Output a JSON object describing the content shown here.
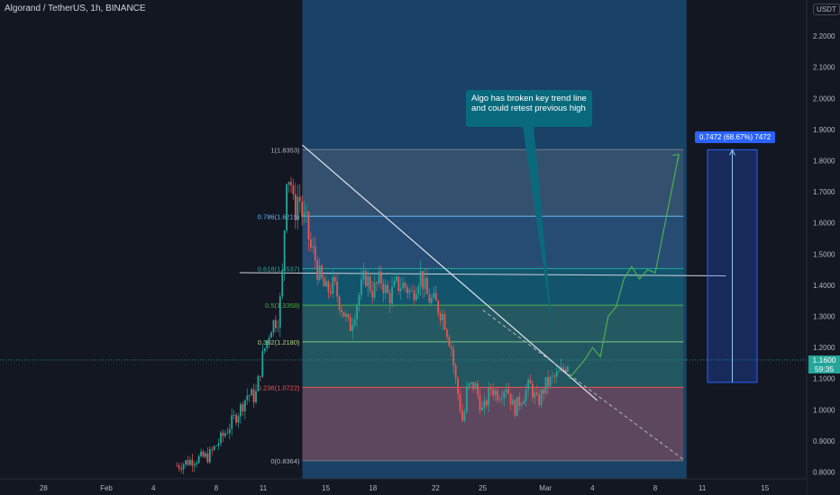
{
  "header": {
    "title": "Algorand / TetherUS, 1h, BINANCE",
    "currency": "USDT"
  },
  "current_price": {
    "value": "1.1600",
    "countdown": "59:35",
    "price": 1.16
  },
  "annotation": {
    "text": "Algo has broken key trend line and could retest previous high"
  },
  "range_measure": {
    "label": "0.7472 (68.67%) 7472",
    "from": 1.0878,
    "to": 1.835
  },
  "colors": {
    "background": "#131722",
    "up": "#26a69a",
    "down": "#ef5350",
    "highlight": "#1b4a72",
    "projection": "#4caf50",
    "callout": "#0a6a7d",
    "range_box": "#2962ff"
  },
  "chart_data": {
    "type": "candlestick",
    "symbol": "Algorand / TetherUS",
    "interval": "1h",
    "exchange": "BINANCE",
    "y_axis": {
      "range": [
        0.79,
        2.28
      ],
      "ticks": [
        "2.2000",
        "2.1000",
        "2.0000",
        "1.9000",
        "1.8000",
        "1.7000",
        "1.6000",
        "1.5000",
        "1.4000",
        "1.3000",
        "1.2000",
        "1.1000",
        "1.0000",
        "0.9000",
        "0.8000"
      ],
      "tick_values": [
        2.2,
        2.1,
        2.0,
        1.9,
        1.8,
        1.7,
        1.6,
        1.5,
        1.4,
        1.3,
        1.2,
        1.1,
        1.0,
        0.9,
        0.8
      ]
    },
    "x_axis": {
      "ticks": [
        "28",
        "Feb",
        "4",
        "8",
        "11",
        "15",
        "18",
        "22",
        "25",
        "Mar",
        "4",
        "8",
        "11",
        "15"
      ],
      "tick_days": [
        -4,
        0,
        3,
        7,
        10,
        14,
        17,
        21,
        24,
        28,
        31,
        35,
        38,
        42
      ],
      "note": "days counted from Feb 1"
    },
    "series": [
      {
        "name": "price",
        "day": [
          4.5,
          5.5,
          6.5,
          7.5,
          8.5,
          9.0,
          9.5,
          10.0,
          10.5,
          11.0,
          11.25,
          11.5,
          11.75,
          12.0,
          12.25,
          12.5,
          12.75,
          13.0,
          13.25,
          13.5,
          14.0,
          14.5,
          15.0,
          15.5,
          16.0,
          16.5,
          17.0,
          17.5,
          18.0,
          18.5,
          19.0,
          19.5,
          20.0,
          20.5,
          21.0,
          21.5,
          22.0,
          22.25,
          22.5,
          22.75,
          23.0,
          23.5,
          24.0,
          24.5,
          25.0,
          25.5,
          26.0,
          26.5,
          27.0,
          27.5,
          28.0,
          28.5,
          29.0,
          29.5
        ],
        "price": [
          0.82,
          0.84,
          0.85,
          0.92,
          1.0,
          1.05,
          1.04,
          1.18,
          1.27,
          1.3,
          1.45,
          1.76,
          1.74,
          1.62,
          1.7,
          1.62,
          1.6,
          1.52,
          1.5,
          1.44,
          1.38,
          1.4,
          1.33,
          1.26,
          1.35,
          1.43,
          1.38,
          1.42,
          1.36,
          1.4,
          1.4,
          1.37,
          1.44,
          1.36,
          1.34,
          1.3,
          1.2,
          1.1,
          1.03,
          0.95,
          1.07,
          1.08,
          0.99,
          1.07,
          1.05,
          1.08,
          1.0,
          1.04,
          1.08,
          1.02,
          1.08,
          1.1,
          1.12,
          1.16
        ]
      },
      {
        "name": "projection",
        "day": [
          29.5,
          30.5,
          31.0,
          31.5,
          32.0,
          32.5,
          33.0,
          33.5,
          34.0,
          34.5,
          35.0,
          36.5
        ],
        "price": [
          1.1,
          1.16,
          1.2,
          1.17,
          1.3,
          1.33,
          1.42,
          1.46,
          1.42,
          1.45,
          1.44,
          1.82
        ]
      }
    ],
    "fibonacci": {
      "levels": [
        {
          "ratio": 1.0,
          "price": 1.8353,
          "label": "1(1.8353)"
        },
        {
          "ratio": 0.786,
          "price": 1.6215,
          "label": "0.786(1.6215)"
        },
        {
          "ratio": 0.618,
          "price": 1.4537,
          "label": "0.618(1.4537)"
        },
        {
          "ratio": 0.5,
          "price": 1.3358,
          "label": "0.5(1.3358)"
        },
        {
          "ratio": 0.382,
          "price": 1.218,
          "label": "0.382(1.2180)"
        },
        {
          "ratio": 0.236,
          "price": 1.0722,
          "label": "0.236(1.0722)"
        },
        {
          "ratio": 0.0,
          "price": 0.8364,
          "label": "0(0.8364)"
        }
      ],
      "start_day": 12.5,
      "end_day": 36.8
    },
    "trend_lines": [
      {
        "name": "descending trend line",
        "from": [
          12.5,
          1.85
        ],
        "to": [
          31.3,
          1.03
        ]
      },
      {
        "name": "extension",
        "from": [
          24.0,
          1.32
        ],
        "to": [
          36.8,
          0.84
        ]
      },
      {
        "name": "horizontal resistance",
        "from": [
          8.5,
          1.44
        ],
        "to": [
          39.5,
          1.43
        ]
      }
    ],
    "highlight_band": {
      "start_day": 12.5,
      "end_day": 37.0
    }
  }
}
